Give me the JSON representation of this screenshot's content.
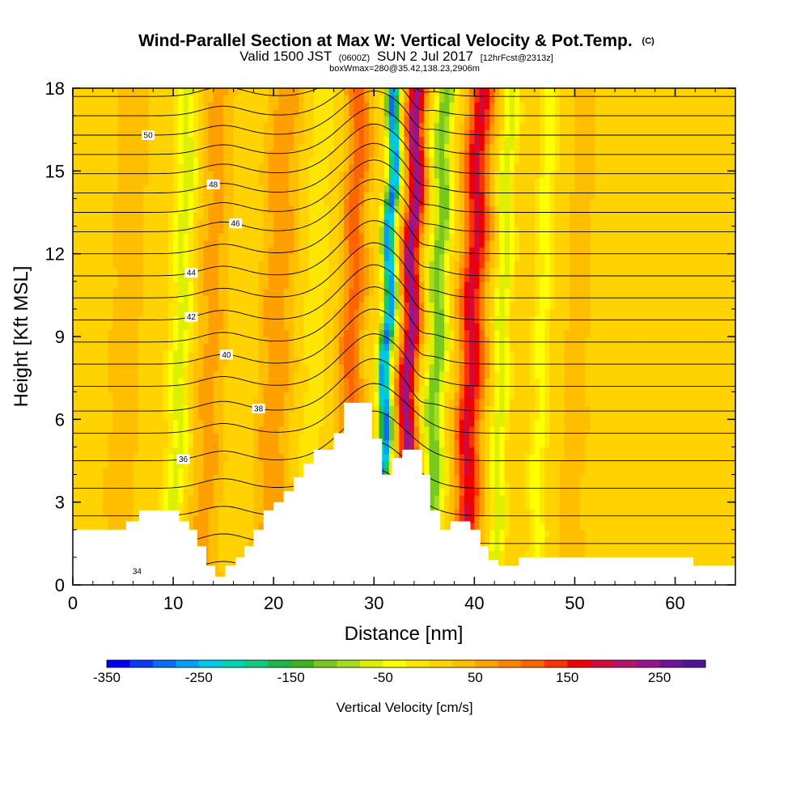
{
  "chart_data": {
    "type": "heatmap",
    "title": "Wind-Parallel Section at Max W: Vertical Velocity & Pot.Temp.",
    "title_mark": "(C)",
    "subtitle_parts": [
      "Valid 1500 JST",
      "(0600Z)",
      "SUN 2 Jul 2017",
      "[12hrFcst@2313z]"
    ],
    "subtitle2": "boxWmax=280@35.42,138.23,2906m",
    "xlabel": "Distance [nm]",
    "ylabel": "Height [Kft MSL]",
    "xlim": [
      0,
      66
    ],
    "ylim": [
      0,
      18
    ],
    "xticks": [
      0,
      10,
      20,
      30,
      40,
      50,
      60
    ],
    "yticks": [
      0,
      3,
      6,
      9,
      12,
      15,
      18
    ],
    "colorbar": {
      "label": "Vertical Velocity [cm/s]",
      "range": [
        -350,
        300
      ],
      "step": 25,
      "tick_values": [
        -350,
        -250,
        -150,
        -50,
        50,
        150,
        250
      ],
      "tick_labels": [
        "-350",
        "-250",
        "-150",
        "-50",
        "50",
        "150",
        "250"
      ],
      "colors": [
        "#0000f0",
        "#0a3cf5",
        "#0a6ef5",
        "#00a0f5",
        "#00c8e6",
        "#00d2b4",
        "#14c87d",
        "#1eb446",
        "#3cb41e",
        "#78c81e",
        "#a5dc1e",
        "#dcf000",
        "#ffff00",
        "#ffe600",
        "#ffd200",
        "#ffbe00",
        "#ffa000",
        "#ff8200",
        "#ff6400",
        "#ff3200",
        "#f00000",
        "#d20a3c",
        "#b4146e",
        "#96148c",
        "#6e1496",
        "#501496"
      ]
    },
    "vertical_velocity_cms": {
      "background": 10,
      "bands": [
        {
          "x": 5,
          "width": 2,
          "value": 25
        },
        {
          "x": 10.5,
          "width": 1.0,
          "value": -70
        },
        {
          "x": 13.5,
          "width": 1.5,
          "value": 50
        },
        {
          "x": 16.8,
          "width": 0.8,
          "value": -10
        },
        {
          "x": 20,
          "width": 1.6,
          "value": 60
        },
        {
          "x": 23.8,
          "width": 1.0,
          "value": -25
        },
        {
          "x": 27.5,
          "width": 1.2,
          "value": 100
        },
        {
          "x": 31,
          "width": 0.6,
          "value": -290
        },
        {
          "x": 33.3,
          "width": 0.85,
          "value": 230
        },
        {
          "x": 36,
          "width": 0.9,
          "value": -130
        },
        {
          "x": 39.5,
          "width": 1.2,
          "value": 170
        },
        {
          "x": 42.5,
          "width": 0.7,
          "value": -80
        },
        {
          "x": 46.5,
          "width": 0.8,
          "value": -50
        },
        {
          "x": 50,
          "width": 2,
          "value": 20
        }
      ]
    },
    "potential_temperature": {
      "label_values": [
        "34",
        "36",
        "38",
        "40",
        "42",
        "44",
        "46",
        "48",
        "50"
      ],
      "levels": [
        {
          "z0": 0.5,
          "amp": 1.6,
          "label": "34",
          "label_x": 6.4
        },
        {
          "z0": 1.5,
          "amp": 1.6
        },
        {
          "z0": 2.5,
          "amp": 1.7
        },
        {
          "z0": 3.5,
          "amp": 1.7
        },
        {
          "z0": 4.5,
          "amp": 1.8,
          "label": "36",
          "label_x": 11
        },
        {
          "z0": 5.5,
          "amp": 1.8
        },
        {
          "z0": 6.3,
          "amp": 1.9,
          "label": "38",
          "label_x": 18.5
        },
        {
          "z0": 7.2,
          "amp": 1.9
        },
        {
          "z0": 8.0,
          "amp": 2.0,
          "label": "40",
          "label_x": 15.3
        },
        {
          "z0": 8.8,
          "amp": 2.0
        },
        {
          "z0": 9.6,
          "amp": 2.0,
          "label": "42",
          "label_x": 11.8
        },
        {
          "z0": 10.4,
          "amp": 2.0
        },
        {
          "z0": 11.2,
          "amp": 2.0,
          "label": "44",
          "label_x": 11.8
        },
        {
          "z0": 12.0,
          "amp": 2.0
        },
        {
          "z0": 12.8,
          "amp": 1.9,
          "label": "46",
          "label_x": 16.2
        },
        {
          "z0": 13.5,
          "amp": 1.9
        },
        {
          "z0": 14.2,
          "amp": 1.8,
          "label": "48",
          "label_x": 14
        },
        {
          "z0": 14.9,
          "amp": 1.8
        },
        {
          "z0": 15.6,
          "amp": 1.7
        },
        {
          "z0": 16.3,
          "amp": 1.6,
          "label": "50",
          "label_x": 7.5
        },
        {
          "z0": 17.0,
          "amp": 1.5
        },
        {
          "z0": 17.7,
          "amp": 1.4
        }
      ]
    },
    "terrain_kft": [
      [
        0,
        2.0
      ],
      [
        5.3,
        2.0
      ],
      [
        5.3,
        2.3
      ],
      [
        6.6,
        2.3
      ],
      [
        6.6,
        2.7
      ],
      [
        10.6,
        2.7
      ],
      [
        10.6,
        2.3
      ],
      [
        11.6,
        2.3
      ],
      [
        11.6,
        2.0
      ],
      [
        12.4,
        2.0
      ],
      [
        12.4,
        1.4
      ],
      [
        13.3,
        1.4
      ],
      [
        13.3,
        0.7
      ],
      [
        14.2,
        0.7
      ],
      [
        14.2,
        0.3
      ],
      [
        15.2,
        0.3
      ],
      [
        15.2,
        0.7
      ],
      [
        16.2,
        0.7
      ],
      [
        16.2,
        1.0
      ],
      [
        17.1,
        1.0
      ],
      [
        17.1,
        1.4
      ],
      [
        18.0,
        1.4
      ],
      [
        18.0,
        2.0
      ],
      [
        19.0,
        2.0
      ],
      [
        19.0,
        2.7
      ],
      [
        20.0,
        2.7
      ],
      [
        20.0,
        3.0
      ],
      [
        21.0,
        3.0
      ],
      [
        21.0,
        3.4
      ],
      [
        22.0,
        3.4
      ],
      [
        22.0,
        3.9
      ],
      [
        23.0,
        3.9
      ],
      [
        23.0,
        4.4
      ],
      [
        24.0,
        4.4
      ],
      [
        24.0,
        4.9
      ],
      [
        26.0,
        4.9
      ],
      [
        26.0,
        5.5
      ],
      [
        27.0,
        5.5
      ],
      [
        27.0,
        6.6
      ],
      [
        29.8,
        6.6
      ],
      [
        29.8,
        5.3
      ],
      [
        30.8,
        5.3
      ],
      [
        30.8,
        4.0
      ],
      [
        31.8,
        4.0
      ],
      [
        31.8,
        4.6
      ],
      [
        32.8,
        4.6
      ],
      [
        32.8,
        4.9
      ],
      [
        34.8,
        4.9
      ],
      [
        34.8,
        4.0
      ],
      [
        35.6,
        4.0
      ],
      [
        35.6,
        2.7
      ],
      [
        36.6,
        2.7
      ],
      [
        36.6,
        2.0
      ],
      [
        37.6,
        2.0
      ],
      [
        37.6,
        2.3
      ],
      [
        39.6,
        2.3
      ],
      [
        39.6,
        2.0
      ],
      [
        40.6,
        2.0
      ],
      [
        40.6,
        1.4
      ],
      [
        41.4,
        1.4
      ],
      [
        41.4,
        0.9
      ],
      [
        42.4,
        0.9
      ],
      [
        42.4,
        0.7
      ],
      [
        44.4,
        0.7
      ],
      [
        44.4,
        1.0
      ],
      [
        61.8,
        1.0
      ],
      [
        61.8,
        0.7
      ],
      [
        66,
        0.7
      ]
    ]
  }
}
